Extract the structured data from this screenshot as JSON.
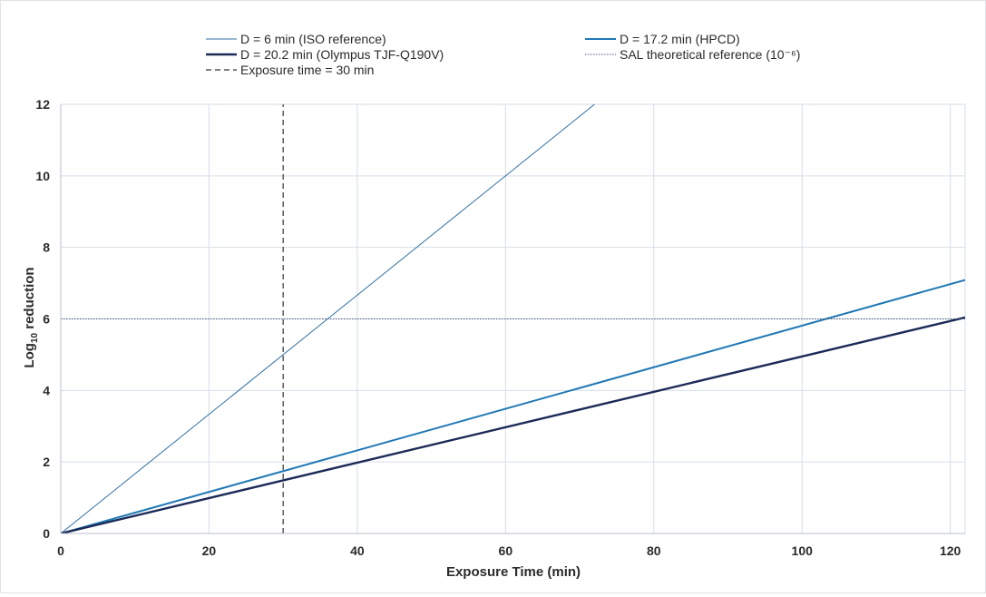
{
  "chart_data": {
    "type": "line",
    "title": "",
    "xlabel": "Exposure Time (min)",
    "ylabel_main": "Log",
    "ylabel_sub": "10",
    "ylabel_rest": " reduction",
    "xlim": [
      0,
      122
    ],
    "ylim": [
      0,
      12
    ],
    "xticks": [
      0,
      20,
      40,
      60,
      80,
      100,
      120
    ],
    "yticks": [
      0,
      2,
      4,
      6,
      8,
      10,
      12
    ],
    "grid": true,
    "legend_position": "top",
    "series": [
      {
        "name": "D = 6 min (ISO reference)",
        "style": "thin",
        "color": "#2f6fa0",
        "x": [
          0,
          72
        ],
        "y": [
          0,
          12
        ]
      },
      {
        "name": "D = 17.2 min (HPCD)",
        "style": "medium",
        "color": "#1f78b4",
        "x": [
          0,
          122
        ],
        "y": [
          0,
          7.09
        ]
      },
      {
        "name": "D = 20.2 min (Olympus TJF-Q190V)",
        "style": "thick",
        "color": "#1b2a57",
        "x": [
          0,
          122
        ],
        "y": [
          0,
          6.04
        ]
      },
      {
        "name": "SAL theoretical reference (10⁻⁶)",
        "style": "dotted",
        "color": "#4a5a7a",
        "x": [
          0,
          122
        ],
        "y": [
          6,
          6
        ]
      },
      {
        "name": "Exposure time = 30 min",
        "style": "dashed",
        "color": "#333333",
        "x": [
          30,
          30
        ],
        "y": [
          0,
          12
        ]
      }
    ]
  }
}
